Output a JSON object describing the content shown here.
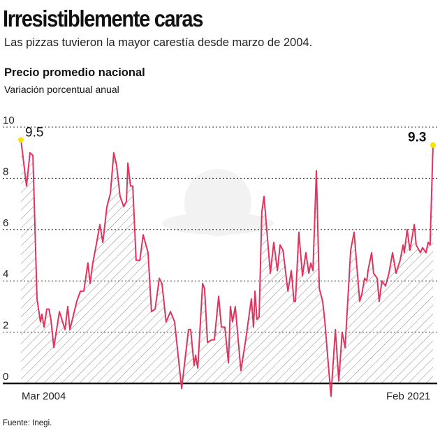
{
  "header": {
    "title": "Irresistiblemente caras",
    "subtitle": "Las pizzas tuvieron la mayor carestía desde marzo de 2004."
  },
  "source": "Fuente: Inegi.",
  "chart_data": {
    "type": "area",
    "title": "Precio promedio nacional",
    "subtitle": "Variación porcentual anual",
    "xlabel": "",
    "ylabel": "",
    "x_tick_labels": [
      "Mar 2004",
      "Feb 2021"
    ],
    "xlim": [
      2004.17,
      2021.09
    ],
    "ylim": [
      0,
      10
    ],
    "y_ticks": [
      0,
      2,
      4,
      6,
      8,
      10
    ],
    "grid": "horizontal dotted",
    "line_color": "#e0345e",
    "highlight_color": "#f7e300",
    "fill": "diagonal hatch",
    "annotations": [
      {
        "label": "9.5",
        "x": 2004.17,
        "y": 9.5
      },
      {
        "label": "9.3",
        "x": 2021.09,
        "y": 9.3
      }
    ],
    "series": [
      {
        "x": [
          2004.17,
          2004.4,
          2004.54,
          2004.66,
          2004.83,
          2004.97,
          2005.03,
          2005.12,
          2005.23,
          2005.32,
          2005.4,
          2005.52,
          2005.75,
          2005.98,
          2006.09,
          2006.18,
          2006.46,
          2006.61,
          2006.75,
          2006.92,
          2007.01,
          2007.12,
          2007.24,
          2007.41,
          2007.53,
          2007.7,
          2007.84,
          2007.98,
          2008.1,
          2008.24,
          2008.39,
          2008.5,
          2008.56,
          2008.67,
          2008.76,
          2008.9,
          2009.05,
          2009.19,
          2009.39,
          2009.53,
          2009.68,
          2009.85,
          2009.96,
          2010.13,
          2010.31,
          2010.48,
          2010.77,
          2011.05,
          2011.14,
          2011.28,
          2011.34,
          2011.43,
          2011.63,
          2011.71,
          2011.83,
          2012.0,
          2012.11,
          2012.29,
          2012.4,
          2012.54,
          2012.69,
          2012.77,
          2012.86,
          2012.97,
          2013.2,
          2013.4,
          2013.63,
          2013.72,
          2013.78,
          2013.86,
          2013.95,
          2014.06,
          2014.15,
          2014.41,
          2014.55,
          2014.7,
          2014.81,
          2014.93,
          2015.13,
          2015.27,
          2015.38,
          2015.44,
          2015.58,
          2015.73,
          2015.87,
          2015.99,
          2016.07,
          2016.16,
          2016.3,
          2016.42,
          2016.56,
          2016.65,
          2016.76,
          2016.9,
          2017.08,
          2017.22,
          2017.36,
          2017.48,
          2017.71,
          2017.85,
          2018.08,
          2018.17,
          2018.28,
          2018.37,
          2018.42,
          2018.57,
          2018.65,
          2018.8,
          2018.88,
          2018.99,
          2019.14,
          2019.28,
          2019.43,
          2019.57,
          2019.74,
          2019.86,
          2019.91,
          2020.03,
          2020.14,
          2020.32,
          2020.4,
          2020.57,
          2020.66,
          2020.8,
          2020.89,
          2020.97,
          2021.09
        ],
        "y": [
          9.5,
          7.7,
          9.0,
          8.9,
          3.3,
          2.4,
          2.7,
          2.2,
          2.9,
          2.9,
          2.5,
          1.4,
          2.8,
          2.1,
          3.0,
          2.1,
          3.2,
          3.6,
          3.6,
          4.7,
          3.9,
          4.7,
          5.3,
          6.2,
          5.5,
          6.9,
          7.4,
          9.0,
          8.5,
          7.3,
          6.9,
          7.1,
          8.6,
          7.7,
          7.7,
          4.8,
          4.8,
          5.8,
          5.1,
          2.8,
          2.9,
          4.1,
          3.9,
          2.4,
          2.8,
          2.4,
          -0.2,
          2.1,
          2.1,
          0.7,
          1.1,
          0.6,
          3.9,
          3.7,
          1.6,
          1.7,
          1.7,
          3.4,
          2.2,
          2.2,
          0.8,
          3.0,
          2.4,
          3.0,
          0.5,
          1.7,
          3.3,
          2.2,
          3.6,
          2.5,
          2.6,
          6.7,
          7.3,
          4.3,
          5.5,
          4.4,
          5.4,
          5.2,
          3.6,
          4.4,
          3.2,
          3.2,
          5.9,
          4.2,
          5.1,
          4.3,
          4.7,
          4.4,
          8.3,
          3.7,
          3.2,
          2.4,
          1.1,
          -0.5,
          2.1,
          0.1,
          2.0,
          1.4,
          5.2,
          5.9,
          3.2,
          3.5,
          4.1,
          4.0,
          4.4,
          5.1,
          4.3,
          4.1,
          3.2,
          4.0,
          3.8,
          4.3,
          5.1,
          4.3,
          4.8,
          5.4,
          5.1,
          6.0,
          5.2,
          6.2,
          5.4,
          5.1,
          5.3,
          5.1,
          5.5,
          5.4,
          9.3
        ]
      }
    ]
  }
}
